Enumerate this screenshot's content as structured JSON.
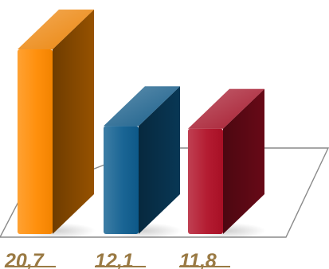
{
  "chart_data": {
    "type": "bar",
    "categories": [
      "",
      "",
      ""
    ],
    "values": [
      20.7,
      12.1,
      11.8
    ],
    "value_labels": [
      "20,7",
      "12,1",
      "11,8"
    ],
    "colors": [
      "#ff8a00",
      "#0e5d8f",
      "#b01027"
    ],
    "title": "",
    "xlabel": "",
    "ylabel": "",
    "ylim": [
      0,
      22
    ],
    "grid": false,
    "legend": "none"
  }
}
